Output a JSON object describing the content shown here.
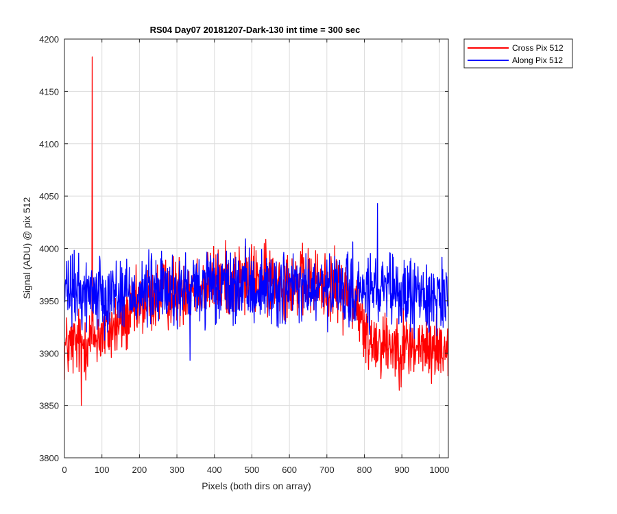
{
  "chart_data": {
    "type": "line",
    "title": "RS04 Day07 20181207-Dark-130 int time = 300 sec",
    "xlabel": "Pixels (both dirs on array)",
    "ylabel": "Signal (ADU) @ pix 512",
    "xlim": [
      0,
      1024
    ],
    "ylim": [
      3800,
      4200
    ],
    "xticks": [
      0,
      100,
      200,
      300,
      400,
      500,
      600,
      700,
      800,
      900,
      1000
    ],
    "yticks": [
      3800,
      3850,
      3900,
      3950,
      4000,
      4050,
      4100,
      4150,
      4200
    ],
    "grid": true,
    "legend_position": "outside-top-right",
    "series": [
      {
        "name": "Cross Pix 512",
        "color": "#ff0000",
        "trend_x": [
          0,
          30,
          60,
          100,
          150,
          200,
          250,
          300,
          350,
          400,
          450,
          500,
          550,
          600,
          650,
          700,
          750,
          780,
          800,
          850,
          900,
          950,
          1000,
          1023
        ],
        "trend_y": [
          3905,
          3908,
          3912,
          3918,
          3928,
          3945,
          3955,
          3960,
          3965,
          3968,
          3970,
          3970,
          3970,
          3968,
          3966,
          3965,
          3958,
          3950,
          3915,
          3910,
          3907,
          3905,
          3905,
          3908
        ],
        "noise_amplitude": 22,
        "peak_x": 74,
        "peak_y": 4183,
        "min_x": 45,
        "min_y": 3850
      },
      {
        "name": "Along Pix 512",
        "color": "#0000ff",
        "trend_x": [
          0,
          100,
          200,
          300,
          400,
          500,
          600,
          700,
          800,
          900,
          1023
        ],
        "trend_y": [
          3958,
          3958,
          3958,
          3960,
          3962,
          3962,
          3962,
          3960,
          3958,
          3956,
          3955
        ],
        "noise_amplitude": 23,
        "peak_x": 835,
        "peak_y": 4043,
        "min_x": 335,
        "min_y": 3893
      }
    ]
  }
}
